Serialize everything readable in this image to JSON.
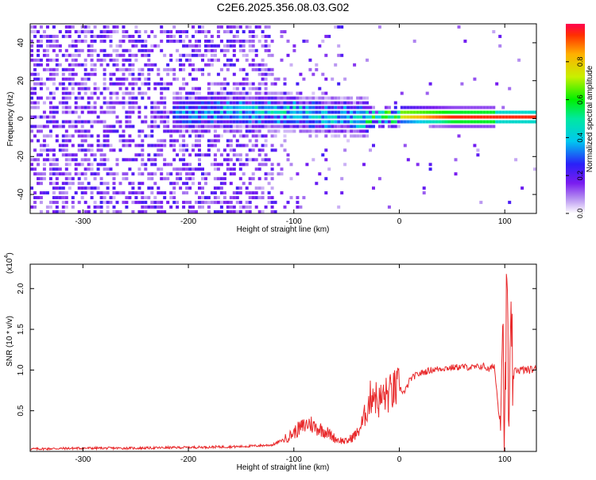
{
  "title": "C2E6.2025.356.08.03.G02",
  "chart_data": [
    {
      "type": "heatmap",
      "title": "C2E6.2025.356.08.03.G02",
      "xlabel": "Height of straight line (km)",
      "ylabel": "Frequency (Hz)",
      "xlim": [
        -350,
        130
      ],
      "ylim": [
        -50,
        50
      ],
      "xticks": [
        -300,
        -200,
        -100,
        0,
        100
      ],
      "yticks": [
        -40,
        -20,
        0,
        20,
        40
      ],
      "colorbar": {
        "label": "Normalized spectral amplitude",
        "range": [
          0,
          1
        ],
        "ticks": [
          "0.0",
          "0.2",
          "0.4",
          "0.6",
          "0.8"
        ],
        "tick_values": [
          0.0,
          0.2,
          0.4,
          0.6,
          0.8
        ]
      },
      "signal_track": {
        "description_x": [
          -215,
          -150,
          -100,
          -50,
          -30,
          0,
          50,
          100,
          130
        ],
        "center_freq": [
          2,
          3,
          2,
          0,
          -1,
          1,
          0,
          0,
          0
        ],
        "peak_amplitude": [
          0.35,
          0.45,
          0.5,
          0.45,
          0.6,
          0.8,
          0.95,
          0.95,
          0.95
        ]
      }
    },
    {
      "type": "line",
      "xlabel": "Height of straight line (km)",
      "ylabel": "SNR (10 * v/v)",
      "y_scale_label": "(x10",
      "y_scale_exp": "4",
      "xlim": [
        -350,
        130
      ],
      "ylim": [
        0,
        2.3
      ],
      "xticks": [
        -300,
        -200,
        -100,
        0,
        100
      ],
      "yticks": [
        0.5,
        1.0,
        1.5,
        2.0
      ],
      "ytick_labels": [
        "0.5",
        "1.0",
        "1.5",
        "2.0"
      ],
      "series": [
        {
          "name": "SNR",
          "color": "#e8282a",
          "x": [
            -350,
            -300,
            -250,
            -200,
            -150,
            -120,
            -105,
            -95,
            -85,
            -80,
            -70,
            -60,
            -50,
            -40,
            -35,
            -30,
            -25,
            -20,
            -15,
            -10,
            -5,
            0,
            5,
            10,
            15,
            20,
            30,
            40,
            50,
            60,
            70,
            80,
            85,
            90,
            95,
            98,
            100,
            102,
            104,
            106,
            108,
            110,
            120,
            130
          ],
          "y": [
            0.03,
            0.04,
            0.04,
            0.05,
            0.06,
            0.08,
            0.18,
            0.28,
            0.35,
            0.3,
            0.25,
            0.15,
            0.12,
            0.22,
            0.35,
            0.55,
            0.75,
            0.6,
            0.68,
            0.7,
            0.75,
            0.78,
            0.72,
            0.88,
            0.93,
            0.96,
            1.0,
            1.02,
            1.03,
            1.04,
            1.03,
            1.05,
            1.0,
            1.06,
            0.4,
            1.6,
            0.05,
            2.2,
            0.3,
            1.3,
            0.9,
            1.0,
            1.0,
            1.01
          ]
        }
      ]
    }
  ]
}
